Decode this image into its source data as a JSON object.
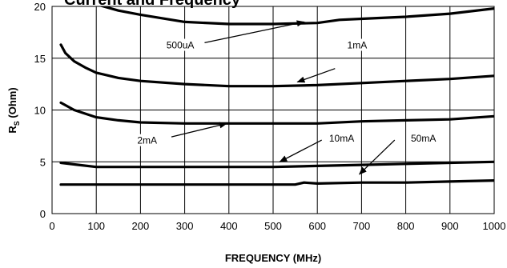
{
  "chart_data": {
    "type": "line",
    "title": "Current and Frequency",
    "xlabel": "FREQUENCY (MHz)",
    "ylabel_main": "R",
    "ylabel_sub": "S",
    "ylabel_unit": " (Ohm)",
    "xlim": [
      0,
      1000
    ],
    "ylim": [
      0,
      20
    ],
    "x_ticks": [
      0,
      100,
      200,
      300,
      400,
      500,
      600,
      700,
      800,
      900,
      1000
    ],
    "y_ticks": [
      0,
      5,
      10,
      15,
      20
    ],
    "grid": true,
    "series": [
      {
        "name": "500uA",
        "x": [
          20,
          100,
          150,
          200,
          300,
          400,
          500,
          600,
          650,
          700,
          800,
          900,
          1000
        ],
        "y": [
          20.5,
          20.2,
          19.6,
          19.2,
          18.5,
          18.3,
          18.3,
          18.4,
          18.7,
          18.8,
          19.0,
          19.3,
          19.8
        ]
      },
      {
        "name": "1mA",
        "x": [
          20,
          30,
          50,
          75,
          100,
          150,
          200,
          300,
          400,
          500,
          600,
          700,
          800,
          900,
          1000
        ],
        "y": [
          16.3,
          15.5,
          14.7,
          14.1,
          13.6,
          13.1,
          12.8,
          12.5,
          12.3,
          12.3,
          12.4,
          12.6,
          12.8,
          13.0,
          13.3
        ]
      },
      {
        "name": "2mA",
        "x": [
          20,
          50,
          100,
          150,
          200,
          300,
          400,
          500,
          600,
          700,
          800,
          900,
          1000
        ],
        "y": [
          10.7,
          10.0,
          9.3,
          9.0,
          8.8,
          8.7,
          8.7,
          8.7,
          8.7,
          8.9,
          9.0,
          9.1,
          9.4
        ]
      },
      {
        "name": "10mA",
        "x": [
          20,
          60,
          100,
          200,
          300,
          400,
          500,
          600,
          700,
          800,
          900,
          1000
        ],
        "y": [
          4.9,
          4.7,
          4.5,
          4.5,
          4.5,
          4.5,
          4.5,
          4.6,
          4.7,
          4.8,
          4.9,
          5.0
        ]
      },
      {
        "name": "50mA",
        "x": [
          20,
          100,
          200,
          300,
          400,
          500,
          550,
          570,
          600,
          700,
          800,
          900,
          1000
        ],
        "y": [
          2.8,
          2.8,
          2.8,
          2.8,
          2.8,
          2.8,
          2.8,
          3.0,
          2.9,
          3.0,
          3.0,
          3.1,
          3.2
        ]
      }
    ],
    "annotations": [
      {
        "text": "500uA",
        "label_x": 290,
        "label_y": 16.1,
        "arrow_from": [
          345,
          16.5
        ],
        "arrow_to": [
          570,
          18.5
        ]
      },
      {
        "text": "1mA",
        "label_x": 690,
        "label_y": 16.1,
        "arrow_from": [
          640,
          14.0
        ],
        "arrow_to": [
          555,
          12.7
        ]
      },
      {
        "text": "2mA",
        "label_x": 215,
        "label_y": 6.9,
        "arrow_from": [
          270,
          7.4
        ],
        "arrow_to": [
          395,
          8.7
        ]
      },
      {
        "text": "10mA",
        "label_x": 655,
        "label_y": 7.1,
        "arrow_from": [
          610,
          7.1
        ],
        "arrow_to": [
          515,
          5.0
        ]
      },
      {
        "text": "50mA",
        "label_x": 840,
        "label_y": 7.1,
        "arrow_from": [
          775,
          7.1
        ],
        "arrow_to": [
          695,
          3.8
        ]
      }
    ]
  }
}
